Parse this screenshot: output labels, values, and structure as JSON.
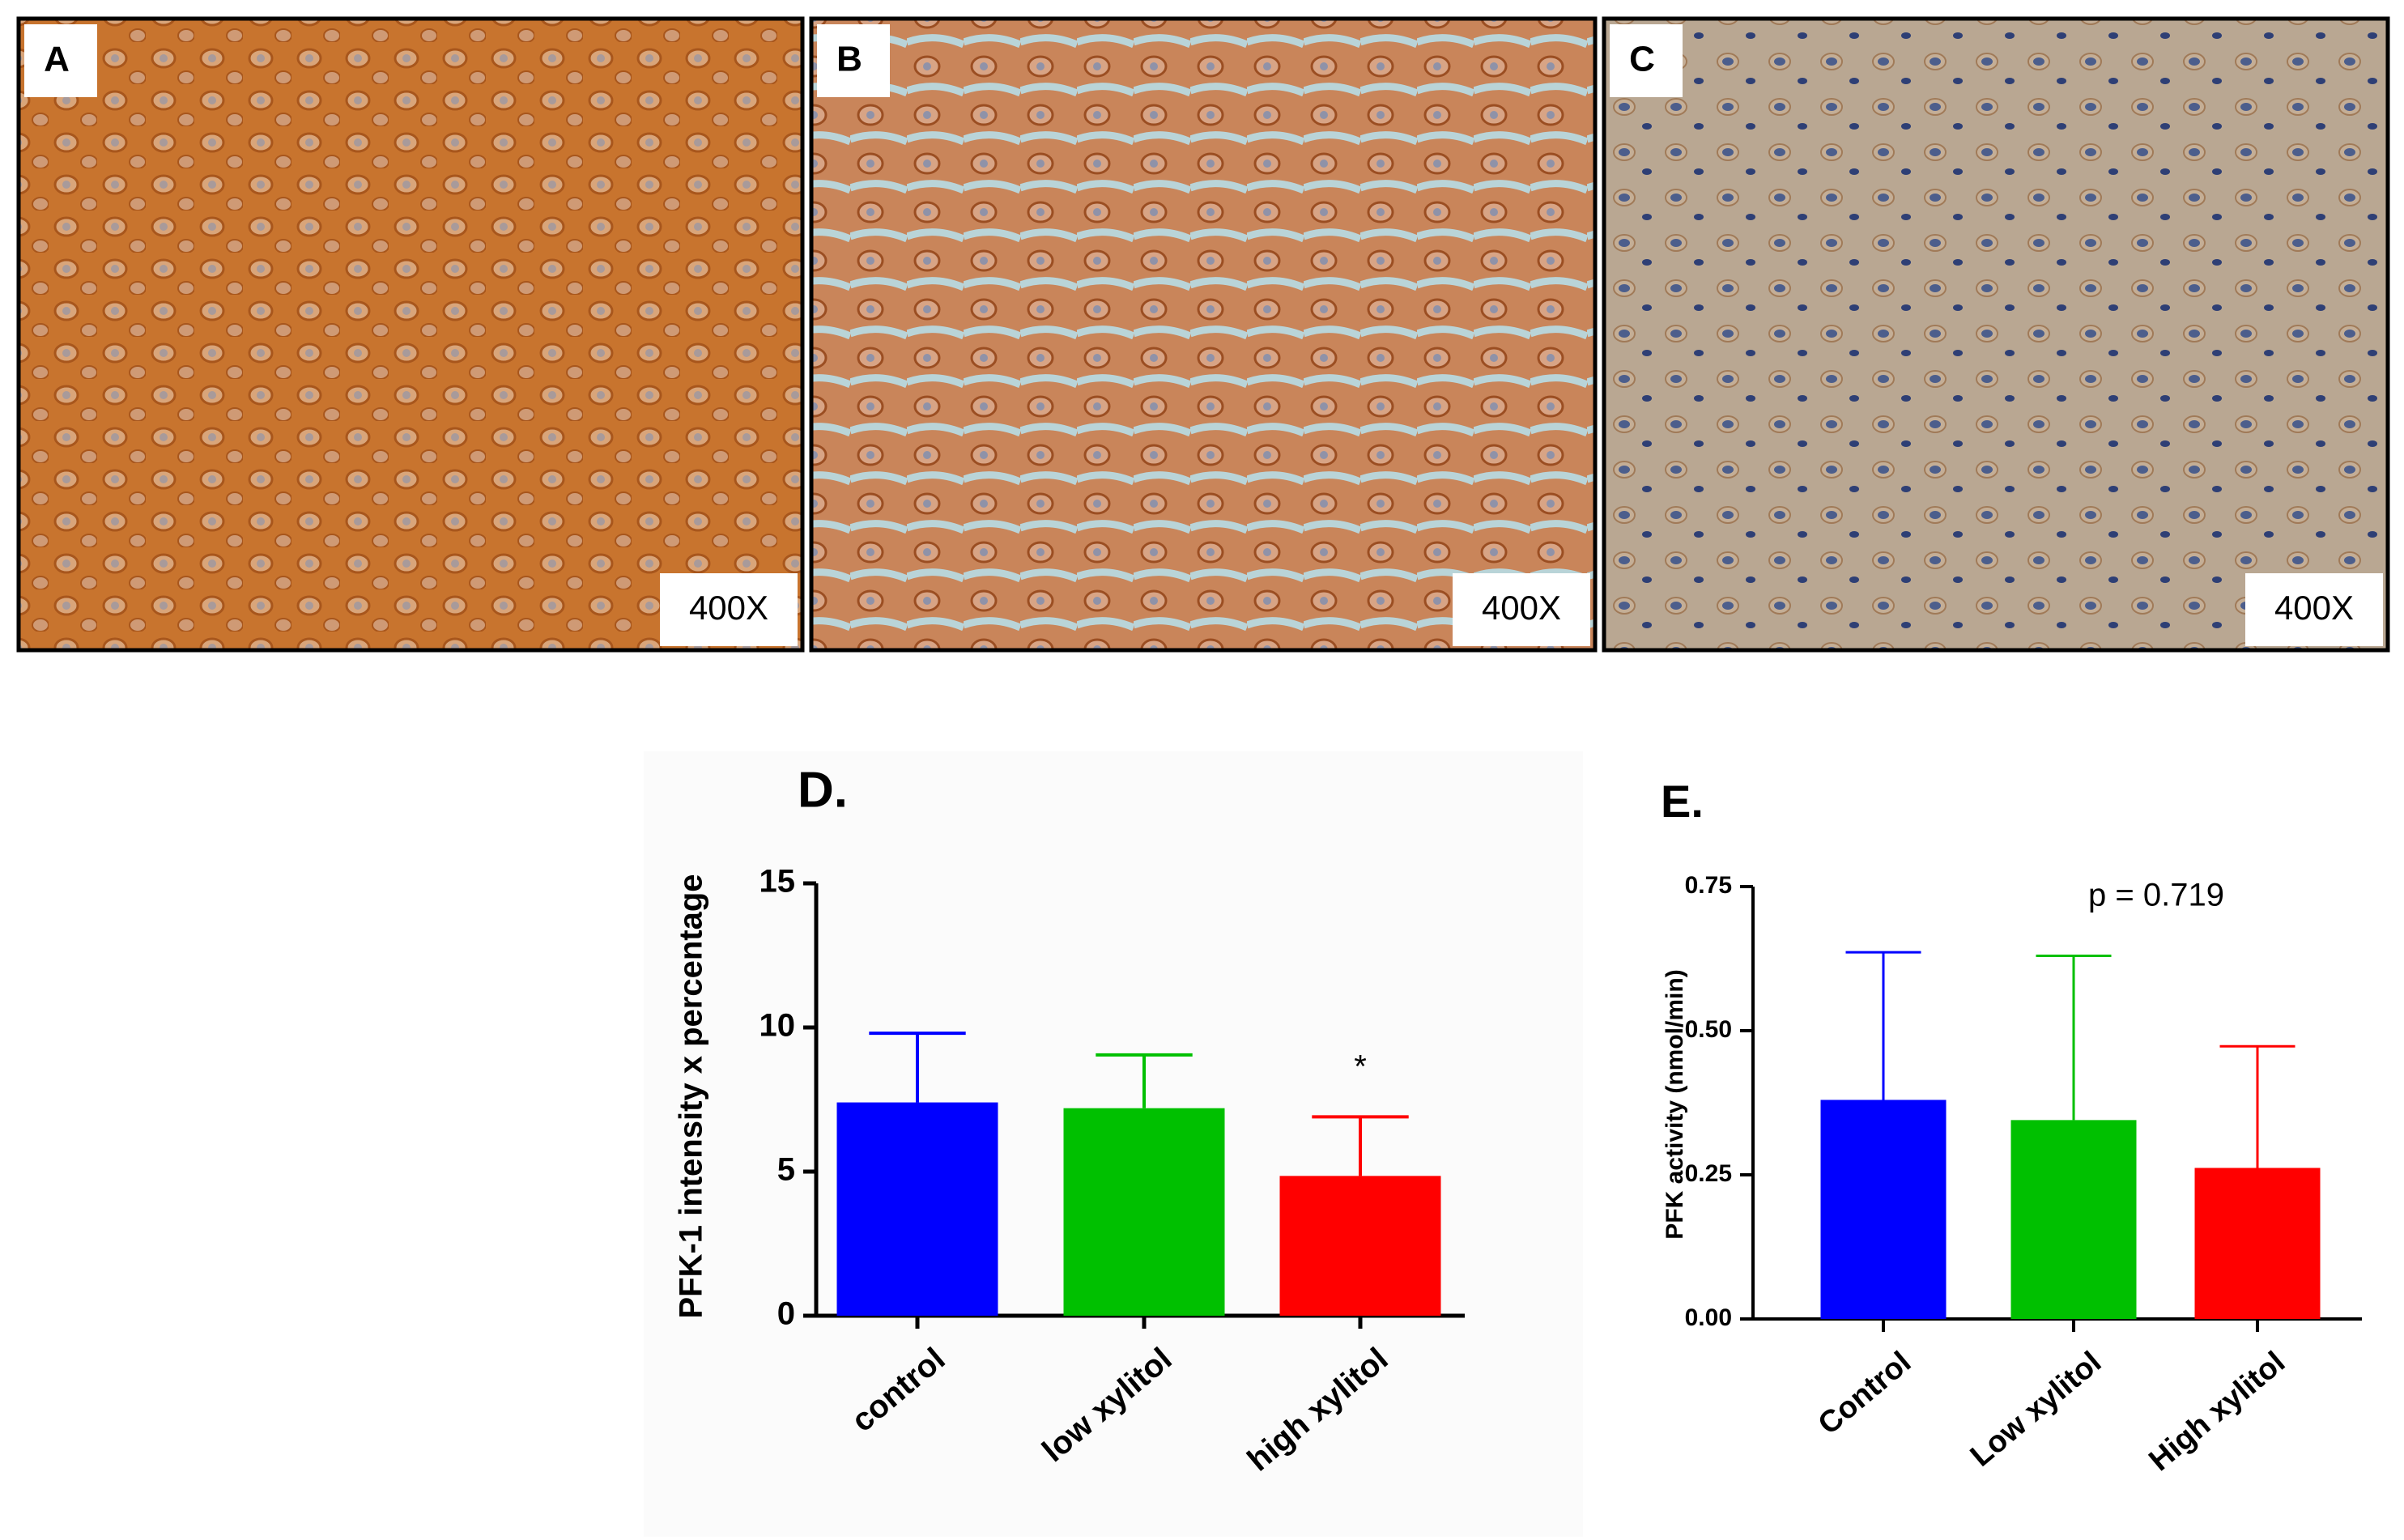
{
  "panels": [
    {
      "label": "A",
      "magnification": "400X"
    },
    {
      "label": "B",
      "magnification": "400X"
    },
    {
      "label": "C",
      "magnification": "400X"
    }
  ],
  "chart_data": [
    {
      "type": "bar",
      "title": "D.",
      "y_label": "PFK-1 intensity x percentage",
      "categories": [
        "control",
        "low xylitol",
        "high xylitol"
      ],
      "values": [
        7.4,
        7.2,
        4.85
      ],
      "errors": [
        2.4,
        1.85,
        2.05
      ],
      "colors": [
        "#0000ff",
        "#00c000",
        "#ff0000"
      ],
      "ylim": [
        0,
        15
      ],
      "yticks": [
        0,
        5,
        10,
        15
      ],
      "annotations": [
        "*"
      ]
    },
    {
      "type": "bar",
      "title": "E.",
      "y_label": "PFK activity (nmol/min)",
      "categories": [
        "Control",
        "Low xylitol",
        "High xylitol"
      ],
      "values": [
        0.38,
        0.345,
        0.262
      ],
      "errors": [
        0.256,
        0.285,
        0.211
      ],
      "colors": [
        "#0000ff",
        "#00c000",
        "#ff0000"
      ],
      "ylim": [
        0,
        0.75
      ],
      "yticks": [
        {
          "value": 0,
          "label": "0.00"
        },
        {
          "value": 0.25,
          "label": "0.25"
        },
        {
          "value": 0.5,
          "label": "0.50"
        },
        {
          "value": 0.75,
          "label": "0.75"
        }
      ],
      "annotations": [
        "p = 0.719"
      ]
    }
  ]
}
